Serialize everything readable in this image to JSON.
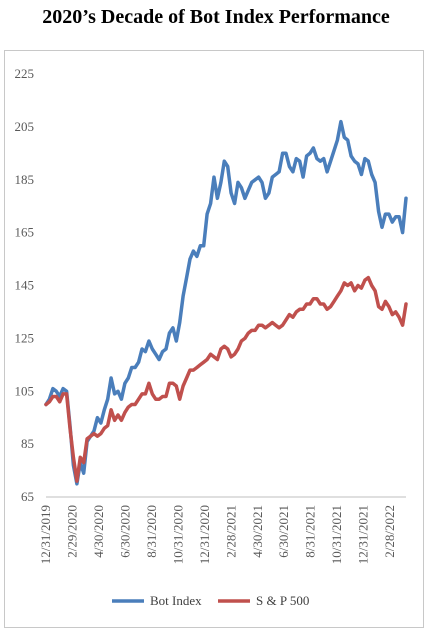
{
  "chart_data": {
    "type": "line",
    "title": "2020’s Decade of Bot Index Performance",
    "xlabel": "",
    "ylabel": "",
    "ylim": [
      65,
      225
    ],
    "yticks": [
      65,
      85,
      105,
      125,
      145,
      165,
      185,
      205,
      225
    ],
    "xtick_labels": [
      "12/31/2019",
      "2/29/2020",
      "4/30/2020",
      "6/30/2020",
      "8/31/2020",
      "10/31/2020",
      "12/31/2020",
      "2/28/2021",
      "4/30/2021",
      "6/30/2021",
      "8/31/2021",
      "10/31/2021",
      "12/31/2021",
      "2/28/2022"
    ],
    "grid": false,
    "legend_position": "bottom",
    "series": [
      {
        "name": "Bot Index",
        "color": "#4a7ebb",
        "values": [
          100,
          102,
          106,
          105,
          103,
          106,
          105,
          92,
          77,
          70,
          78,
          74,
          86,
          88,
          90,
          95,
          93,
          98,
          102,
          110,
          104,
          105,
          102,
          108,
          110,
          114,
          114,
          116,
          121,
          120,
          124,
          121,
          119,
          117,
          120,
          121,
          127,
          129,
          124,
          131,
          141,
          148,
          155,
          158,
          156,
          160,
          160,
          172,
          176,
          186,
          178,
          184,
          192,
          190,
          180,
          176,
          184,
          182,
          178,
          181,
          184,
          185,
          186,
          184,
          178,
          180,
          186,
          187,
          188,
          195,
          195,
          190,
          188,
          193,
          192,
          186,
          194,
          195,
          197,
          193,
          192,
          193,
          188,
          192,
          196,
          200,
          207,
          201,
          200,
          194,
          192,
          191,
          187,
          193,
          192,
          187,
          184,
          173,
          167,
          172,
          172,
          169,
          171,
          171,
          165,
          178
        ]
      },
      {
        "name": "S & P 500",
        "color": "#c0504d",
        "values": [
          100,
          101,
          103,
          103,
          101,
          104,
          104,
          91,
          80,
          71,
          80,
          78,
          87,
          88,
          89,
          88,
          89,
          91,
          92,
          98,
          94,
          96,
          94,
          97,
          99,
          100,
          100,
          102,
          104,
          104,
          108,
          104,
          102,
          102,
          103,
          103,
          108,
          108,
          107,
          102,
          107,
          110,
          113,
          113,
          114,
          115,
          116,
          117,
          119,
          118,
          117,
          121,
          122,
          121,
          118,
          119,
          121,
          124,
          125,
          127,
          128,
          128,
          130,
          130,
          129,
          130,
          131,
          130,
          129,
          130,
          132,
          134,
          133,
          135,
          136,
          136,
          138,
          138,
          140,
          140,
          138,
          138,
          136,
          137,
          139,
          141,
          143,
          146,
          145,
          146,
          143,
          145,
          144,
          147,
          148,
          145,
          143,
          137,
          136,
          139,
          137,
          134,
          135,
          133,
          130,
          138
        ]
      }
    ]
  }
}
